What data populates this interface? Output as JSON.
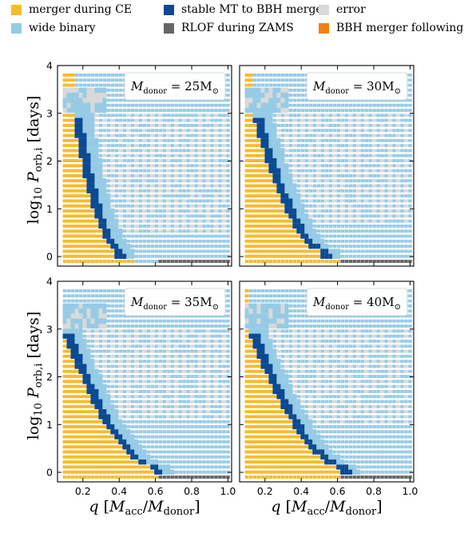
{
  "legend": {
    "items": [
      {
        "label": "merger during CE",
        "color": "#f8bb2a"
      },
      {
        "label": "stable MT to BBH merger",
        "color": "#0a4a94"
      },
      {
        "label": "error",
        "color": "#d9d9d9"
      },
      {
        "label": "wide binary",
        "color": "#96cbe6"
      },
      {
        "label": "RLOF during ZAMS",
        "color": "#666666"
      },
      {
        "label": "BBH merger following CE",
        "color": "#f57f0e"
      }
    ]
  },
  "chart_data": [
    {
      "type": "heatmap",
      "annotation": {
        "prefix": "M",
        "sub": "donor",
        "value": "= 25M",
        "sun": "⊙"
      },
      "donor_mass": 25,
      "xlabel": "q [Macc/Mdonor]",
      "ylabel": "log10 Porb,i [days]",
      "xlim": [
        0.06,
        1.02
      ],
      "ylim": [
        -0.2,
        4.0
      ],
      "xticks": [
        "0.2",
        "0.4",
        "0.6",
        "0.8",
        "1.0"
      ],
      "yticks": [
        "0",
        "1",
        "2",
        "3",
        "4"
      ],
      "boundary": {
        "x_top": 0.18,
        "x_bottom": 0.42,
        "gray_top": 3.1,
        "gray_bottom": 0.35
      }
    },
    {
      "type": "heatmap",
      "annotation": {
        "prefix": "M",
        "sub": "donor",
        "value": "= 30M",
        "sun": "⊙"
      },
      "donor_mass": 30,
      "xlabel": "q [Macc/Mdonor]",
      "ylabel": "log10 Porb,i [days]",
      "xlim": [
        0.06,
        1.02
      ],
      "ylim": [
        -0.2,
        4.0
      ],
      "xticks": [
        "0.2",
        "0.4",
        "0.6",
        "0.8",
        "1.0"
      ],
      "yticks": [
        "0",
        "1",
        "2",
        "3",
        "4"
      ],
      "boundary": {
        "x_top": 0.17,
        "x_bottom": 0.55,
        "gray_top": 3.1,
        "gray_bottom": 0.6
      }
    },
    {
      "type": "heatmap",
      "annotation": {
        "prefix": "M",
        "sub": "donor",
        "value": "= 35M",
        "sun": "⊙"
      },
      "donor_mass": 35,
      "xlabel": "q [Macc/Mdonor]",
      "ylabel": "log10 Porb,i [days]",
      "xlim": [
        0.06,
        1.02
      ],
      "ylim": [
        -0.2,
        4.0
      ],
      "xticks": [
        "0.2",
        "0.4",
        "0.6",
        "0.8",
        "1.0"
      ],
      "yticks": [
        "0",
        "1",
        "2",
        "3",
        "4"
      ],
      "boundary": {
        "x_top": 0.13,
        "x_bottom": 0.62,
        "gray_top": 3.4,
        "gray_bottom": 1.0
      }
    },
    {
      "type": "heatmap",
      "annotation": {
        "prefix": "M",
        "sub": "donor",
        "value": "= 40M",
        "sun": "⊙"
      },
      "donor_mass": 40,
      "xlabel": "q [Macc/Mdonor]",
      "ylabel": "log10 Porb,i [days]",
      "xlim": [
        0.06,
        1.02
      ],
      "ylim": [
        -0.2,
        4.0
      ],
      "xticks": [
        "0.2",
        "0.4",
        "0.6",
        "0.8",
        "1.0"
      ],
      "yticks": [
        "0",
        "1",
        "2",
        "3",
        "4"
      ],
      "boundary": {
        "x_top": 0.15,
        "x_bottom": 0.66,
        "gray_top": 3.0,
        "gray_bottom": 0.9
      }
    }
  ]
}
